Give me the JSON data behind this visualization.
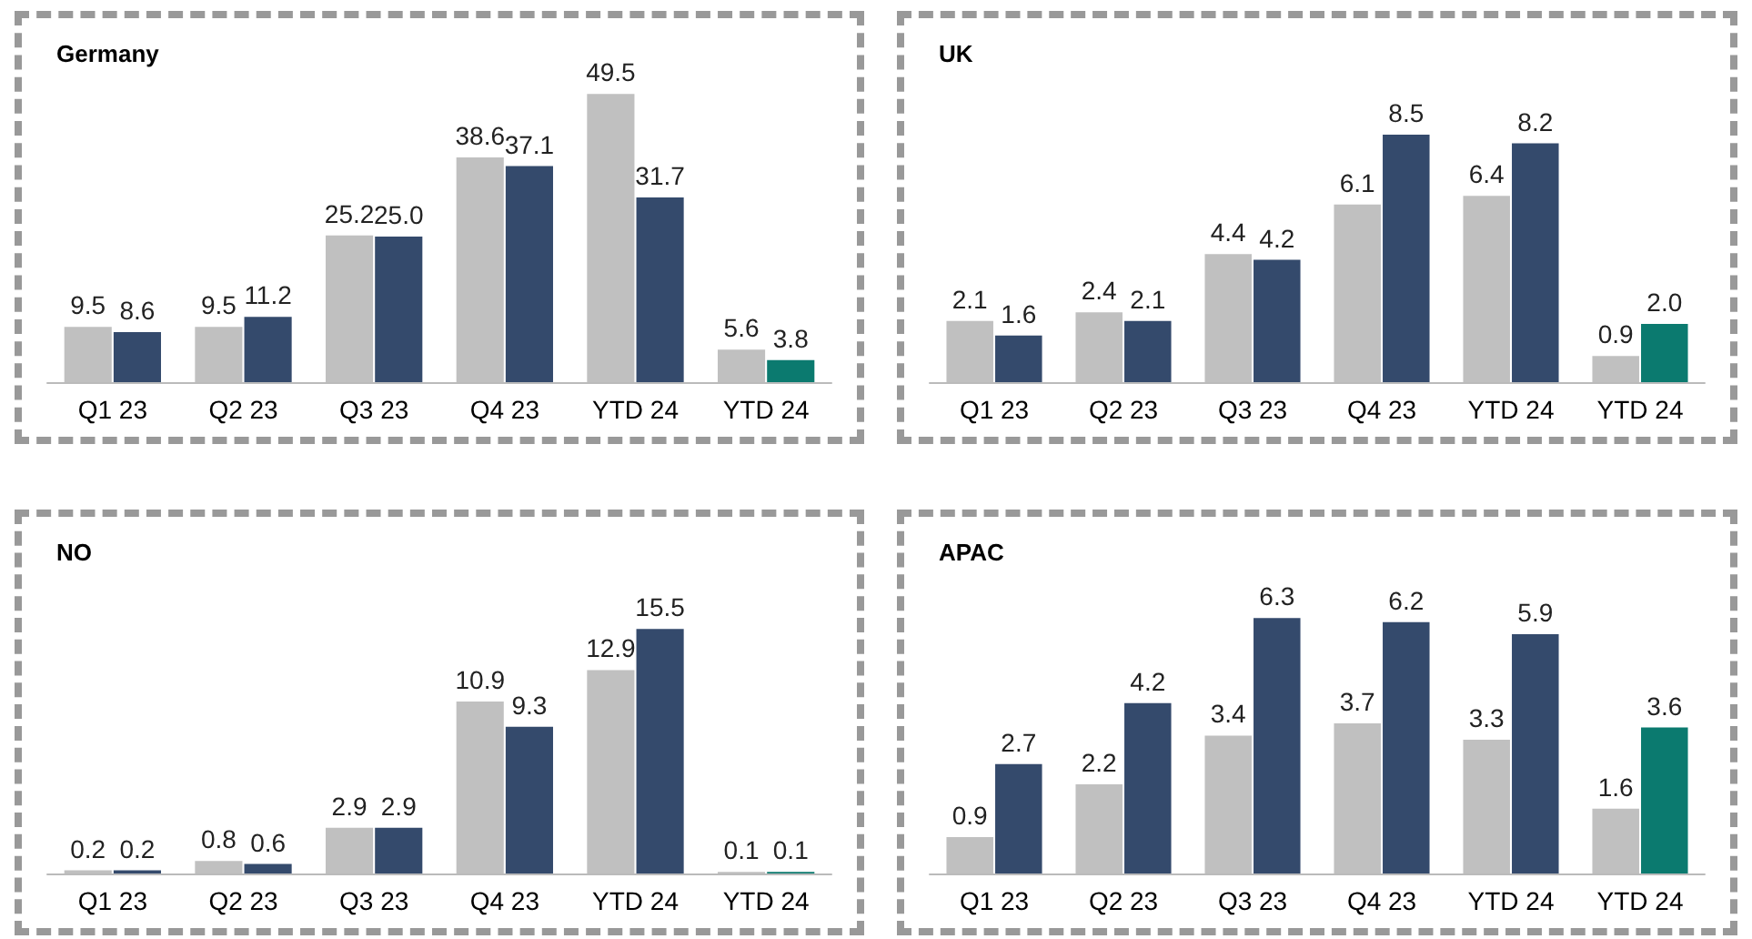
{
  "chart_data": [
    {
      "type": "bar",
      "title": "Germany",
      "categories": [
        "Q1 23",
        "Q2 23",
        "Q3 23",
        "Q4 23",
        "YTD 24",
        "YTD 24"
      ],
      "series": [
        {
          "color": "#c0c0c0",
          "values": [
            9.5,
            9.5,
            25.2,
            38.6,
            49.5,
            5.6
          ],
          "value_labels": [
            "9.5",
            "9.5",
            "25.2",
            "38.6",
            "49.5",
            "5.6"
          ]
        },
        {
          "colors": [
            "#344a6c",
            "#344a6c",
            "#344a6c",
            "#344a6c",
            "#344a6c",
            "#0b7a6f"
          ],
          "values": [
            8.6,
            11.2,
            25.0,
            37.1,
            31.7,
            3.8
          ],
          "value_labels": [
            "8.6",
            "11.2",
            "25.0",
            "37.1",
            "31.7",
            "3.8"
          ]
        }
      ]
    },
    {
      "type": "bar",
      "title": "UK",
      "categories": [
        "Q1 23",
        "Q2 23",
        "Q3 23",
        "Q4 23",
        "YTD 24",
        "YTD 24"
      ],
      "series": [
        {
          "color": "#c0c0c0",
          "values": [
            2.1,
            2.4,
            4.4,
            6.1,
            6.4,
            0.9
          ],
          "value_labels": [
            "2.1",
            "2.4",
            "4.4",
            "6.1",
            "6.4",
            "0.9"
          ]
        },
        {
          "colors": [
            "#344a6c",
            "#344a6c",
            "#344a6c",
            "#344a6c",
            "#344a6c",
            "#0b7a6f"
          ],
          "values": [
            1.6,
            2.1,
            4.2,
            8.5,
            8.2,
            2.0
          ],
          "value_labels": [
            "1.6",
            "2.1",
            "4.2",
            "8.5",
            "8.2",
            "2.0"
          ]
        }
      ]
    },
    {
      "type": "bar",
      "title": "NO",
      "categories": [
        "Q1 23",
        "Q2 23",
        "Q3 23",
        "Q4 23",
        "YTD 24",
        "YTD 24"
      ],
      "series": [
        {
          "color": "#c0c0c0",
          "values": [
            0.2,
            0.8,
            2.9,
            10.9,
            12.9,
            0.1
          ],
          "value_labels": [
            "0.2",
            "0.8",
            "2.9",
            "10.9",
            "12.9",
            "0.1"
          ]
        },
        {
          "colors": [
            "#344a6c",
            "#344a6c",
            "#344a6c",
            "#344a6c",
            "#344a6c",
            "#0b7a6f"
          ],
          "values": [
            0.2,
            0.6,
            2.9,
            9.3,
            15.5,
            0.1
          ],
          "value_labels": [
            "0.2",
            "0.6",
            "2.9",
            "9.3",
            "15.5",
            "0.1"
          ]
        }
      ]
    },
    {
      "type": "bar",
      "title": "APAC",
      "categories": [
        "Q1 23",
        "Q2 23",
        "Q3 23",
        "Q4 23",
        "YTD 24",
        "YTD 24"
      ],
      "series": [
        {
          "color": "#c0c0c0",
          "values": [
            0.9,
            2.2,
            3.4,
            3.7,
            3.3,
            1.6
          ],
          "value_labels": [
            "0.9",
            "2.2",
            "3.4",
            "3.7",
            "3.3",
            "1.6"
          ]
        },
        {
          "colors": [
            "#344a6c",
            "#344a6c",
            "#344a6c",
            "#344a6c",
            "#344a6c",
            "#0b7a6f"
          ],
          "values": [
            2.7,
            4.2,
            6.3,
            6.2,
            5.9,
            3.6
          ],
          "value_labels": [
            "2.7",
            "4.2",
            "6.3",
            "6.2",
            "5.9",
            "3.6"
          ]
        }
      ]
    }
  ]
}
